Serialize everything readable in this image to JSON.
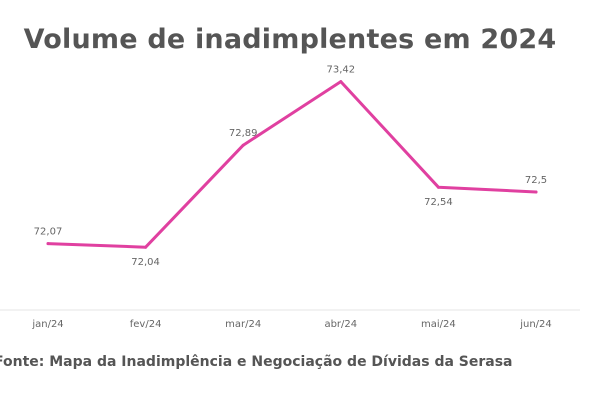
{
  "chart_data": {
    "type": "line",
    "title": "Volume de inadimplentes em 2024",
    "categories": [
      "jan/24",
      "fev/24",
      "mar/24",
      "abr/24",
      "mai/24",
      "jun/24"
    ],
    "series": [
      {
        "values": [
          72.07,
          72.04,
          72.89,
          73.42,
          72.54,
          72.5
        ],
        "labels": [
          "72,07",
          "72,04",
          "72,89",
          "73,42",
          "72,54",
          "72,5"
        ]
      }
    ],
    "ylim": [
      71.6,
      73.6
    ],
    "grid": false,
    "legend": "none",
    "line_color": "#E040A0",
    "text_color": "#555555",
    "source": "Fonte: Mapa da Inadimplência e Negociação de Dívidas da Serasa"
  }
}
